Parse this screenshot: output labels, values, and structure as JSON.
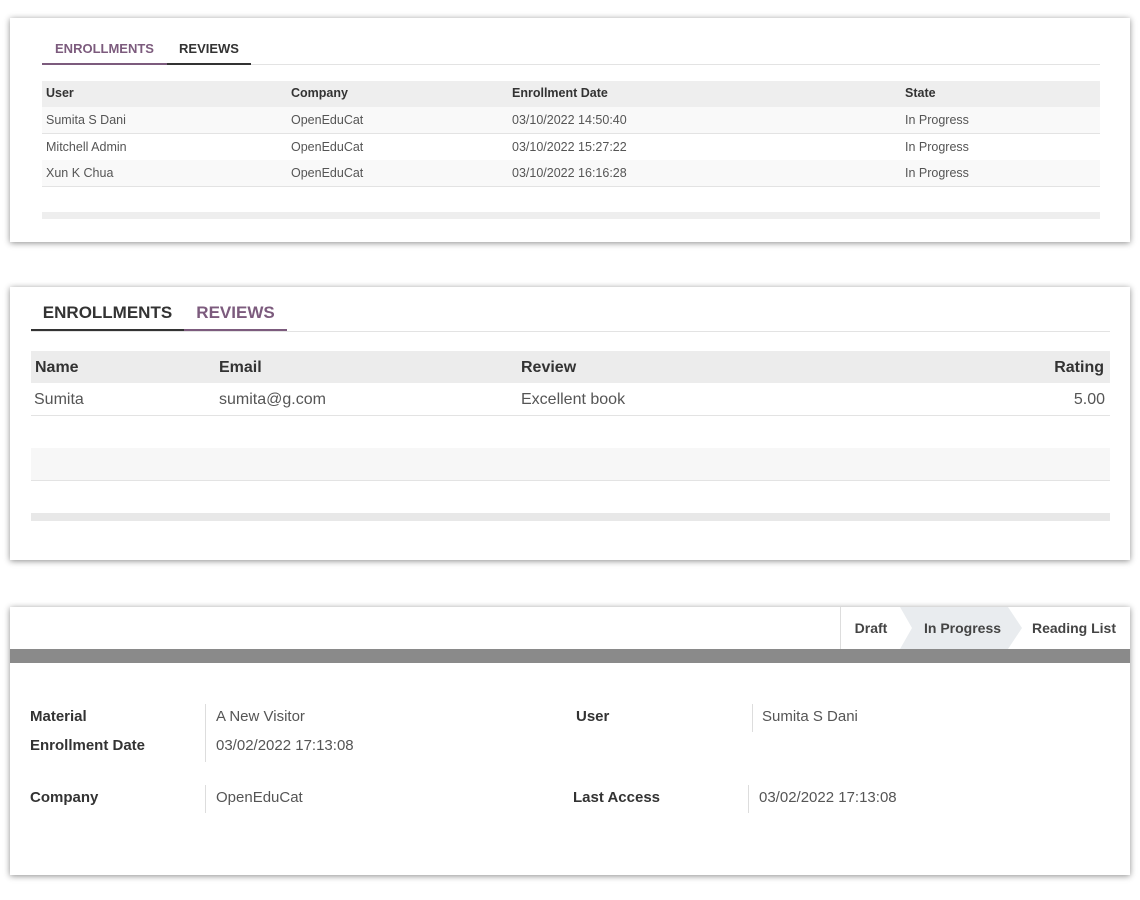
{
  "enrollments_panel": {
    "tabs": [
      {
        "label": "ENROLLMENTS",
        "active": true
      },
      {
        "label": "REVIEWS",
        "active": false
      }
    ],
    "columns": [
      "User",
      "Company",
      "Enrollment Date",
      "State"
    ],
    "rows": [
      [
        "Sumita S Dani",
        "OpenEduCat",
        "03/10/2022 14:50:40",
        "In Progress"
      ],
      [
        "Mitchell Admin",
        "OpenEduCat",
        "03/10/2022 15:27:22",
        "In Progress"
      ],
      [
        "Xun K Chua",
        "OpenEduCat",
        "03/10/2022 16:16:28",
        "In Progress"
      ]
    ]
  },
  "reviews_panel": {
    "tabs": [
      {
        "label": "ENROLLMENTS",
        "active": false
      },
      {
        "label": "REVIEWS",
        "active": true
      }
    ],
    "columns": [
      "Name",
      "Email",
      "Review",
      "Rating"
    ],
    "rows": [
      [
        "Sumita",
        "sumita@g.com",
        "Excellent book",
        "5.00"
      ]
    ]
  },
  "form_panel": {
    "statusbar": [
      {
        "label": "Draft",
        "active": false
      },
      {
        "label": "In Progress",
        "active": true
      },
      {
        "label": "Reading List",
        "active": false
      }
    ],
    "fields": {
      "material": {
        "label": "Material",
        "value": "A New Visitor"
      },
      "enrollment_date": {
        "label": "Enrollment Date",
        "value": "03/02/2022 17:13:08"
      },
      "company": {
        "label": "Company",
        "value": "OpenEduCat"
      },
      "user": {
        "label": "User",
        "value": "Sumita S Dani"
      },
      "last_access": {
        "label": "Last Access",
        "value": "03/02/2022 17:13:08"
      }
    }
  },
  "colors": {
    "accent": "#7c5b7d",
    "status_active_bg": "#e9ecef",
    "band": "#8a8a8a"
  }
}
